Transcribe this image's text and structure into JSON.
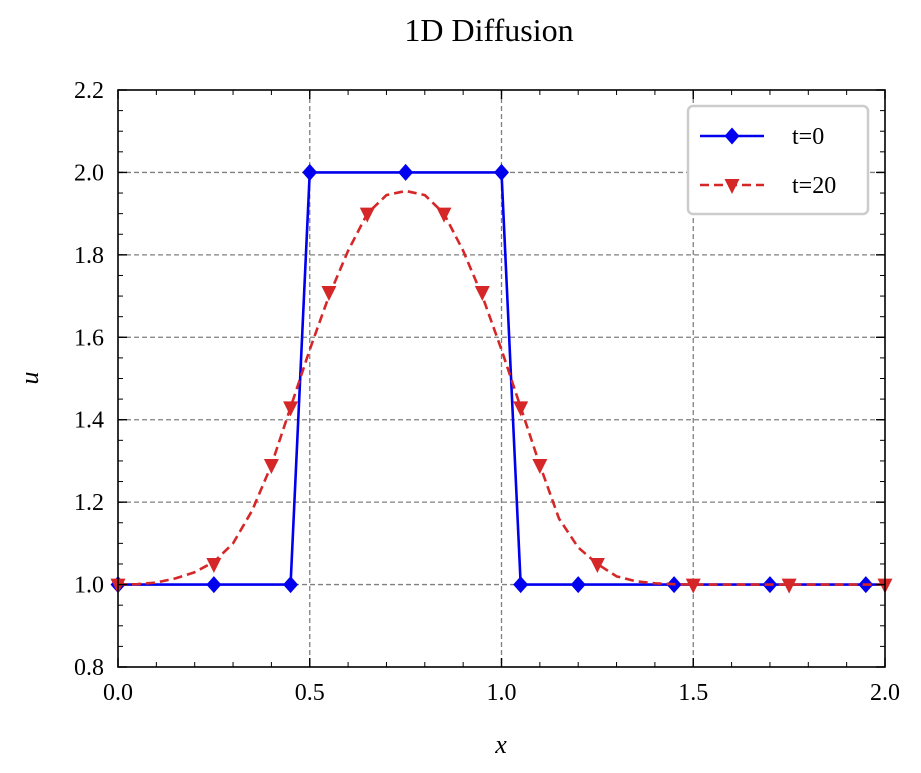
{
  "chart_data": {
    "type": "line",
    "title": "1D Diffusion",
    "xlabel": "x",
    "ylabel": "u",
    "xlim": [
      0,
      2
    ],
    "ylim": [
      0.8,
      2.2
    ],
    "xticks": [
      "0.0",
      "0.5",
      "1.0",
      "1.5",
      "2.0"
    ],
    "yticks": [
      "0.8",
      "1.0",
      "1.2",
      "1.4",
      "1.6",
      "1.8",
      "2.0",
      "2.2"
    ],
    "grid": true,
    "legend_position": "top-right",
    "series": [
      {
        "name": "t=0",
        "color": "#0000ee",
        "line_style": "solid",
        "marker": "diamond",
        "x": [
          0.0,
          0.25,
          0.45,
          0.5,
          0.75,
          1.0,
          1.05,
          1.2,
          1.45,
          1.7,
          1.95,
          2.0
        ],
        "y": [
          1.0,
          1.0,
          1.0,
          2.0,
          2.0,
          2.0,
          1.0,
          1.0,
          1.0,
          1.0,
          1.0,
          1.0
        ],
        "marker_x": [
          0.0,
          0.25,
          0.45,
          0.5,
          0.75,
          1.0,
          1.05,
          1.2,
          1.45,
          1.7,
          1.95
        ],
        "marker_y": [
          1.0,
          1.0,
          1.0,
          2.0,
          2.0,
          2.0,
          1.0,
          1.0,
          1.0,
          1.0,
          1.0
        ]
      },
      {
        "name": "t=20",
        "color": "#d62728",
        "line_style": "dashed",
        "marker": "triangle-down",
        "x": [
          0.0,
          0.05,
          0.1,
          0.15,
          0.2,
          0.25,
          0.3,
          0.35,
          0.4,
          0.45,
          0.5,
          0.55,
          0.6,
          0.65,
          0.7,
          0.75,
          0.8,
          0.85,
          0.9,
          0.95,
          1.0,
          1.05,
          1.1,
          1.15,
          1.2,
          1.25,
          1.3,
          1.35,
          1.4,
          1.45,
          1.5,
          1.55,
          1.6,
          1.65,
          1.7,
          1.75,
          1.8,
          1.85,
          1.9,
          1.95,
          2.0
        ],
        "y": [
          1.0,
          1.001,
          1.005,
          1.015,
          1.03,
          1.055,
          1.1,
          1.18,
          1.29,
          1.43,
          1.57,
          1.7,
          1.81,
          1.9,
          1.945,
          1.955,
          1.945,
          1.9,
          1.81,
          1.7,
          1.57,
          1.43,
          1.29,
          1.16,
          1.09,
          1.05,
          1.02,
          1.008,
          1.003,
          1.001,
          1.0,
          1.0,
          1.0,
          1.0,
          1.0,
          1.0,
          1.0,
          1.0,
          1.0,
          1.0,
          1.0
        ],
        "marker_x": [
          0.0,
          0.25,
          0.4,
          0.45,
          0.55,
          0.65,
          0.85,
          0.95,
          1.05,
          1.1,
          1.25,
          1.5,
          1.75,
          2.0
        ],
        "marker_y": [
          1.0,
          1.05,
          1.29,
          1.43,
          1.71,
          1.9,
          1.9,
          1.71,
          1.43,
          1.29,
          1.05,
          1.0,
          1.0,
          1.0
        ]
      }
    ]
  }
}
